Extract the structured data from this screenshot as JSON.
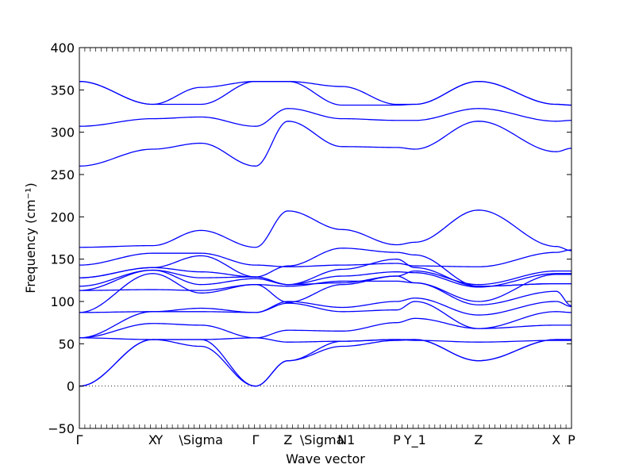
{
  "chart_data": {
    "type": "line",
    "xlabel": "Wave vector",
    "ylabel": "Frequency (cm⁻¹)",
    "ylim": [
      -50,
      400
    ],
    "yticks": [
      -50,
      0,
      50,
      100,
      150,
      200,
      250,
      300,
      350,
      400
    ],
    "grid": false,
    "line_color": "#0000ff",
    "xticks": [
      {
        "label": "Γ",
        "x": 0
      },
      {
        "label": "X",
        "x": 0.149
      },
      {
        "label": "Y",
        "x": 0.162
      },
      {
        "label": "\\Sigma",
        "x": 0.247
      },
      {
        "label": "Γ",
        "x": 0.358
      },
      {
        "label": "Z",
        "x": 0.424
      },
      {
        "label": "\\Sigma",
        "x": 0.493
      },
      {
        "label": "N",
        "x": 0.534
      },
      {
        "label": "1",
        "x": 0.552
      },
      {
        "label": "P",
        "x": 0.645
      },
      {
        "label": "Y_1",
        "x": 0.682
      },
      {
        "label": "Z",
        "x": 0.811
      },
      {
        "label": "X",
        "x": 0.969
      },
      {
        "label": "P",
        "x": 1.0
      }
    ],
    "knots_x": [
      0,
      0.149,
      0.247,
      0.358,
      0.424,
      0.534,
      0.645,
      0.682,
      0.811,
      0.969,
      1.0
    ],
    "series": [
      {
        "values": [
          0,
          55,
          47,
          0,
          30,
          47,
          54,
          55,
          30,
          55,
          55
        ]
      },
      {
        "values": [
          0,
          55,
          55,
          0,
          30,
          53,
          55,
          55,
          30,
          55,
          55
        ]
      },
      {
        "values": [
          57,
          55,
          55,
          57,
          52,
          53,
          55,
          54,
          52,
          54,
          54
        ]
      },
      {
        "values": [
          57,
          74,
          72,
          57,
          66,
          65,
          75,
          80,
          68,
          72,
          72
        ]
      },
      {
        "values": [
          57,
          88,
          88,
          87,
          98,
          88,
          90,
          100,
          68,
          88,
          87
        ]
      },
      {
        "values": [
          87,
          88,
          92,
          87,
          100,
          93,
          100,
          104,
          84,
          100,
          94
        ]
      },
      {
        "values": [
          87,
          133,
          110,
          120,
          99,
          120,
          130,
          122,
          96,
          112,
          95
        ]
      },
      {
        "values": [
          113,
          114,
          113,
          120,
          118,
          124,
          124,
          122,
          100,
          132,
          132
        ]
      },
      {
        "values": [
          113,
          137,
          120,
          127,
          120,
          130,
          135,
          134,
          117,
          133,
          133
        ]
      },
      {
        "values": [
          118,
          137,
          128,
          129,
          120,
          122,
          130,
          136,
          120,
          136,
          136
        ]
      },
      {
        "values": [
          128,
          140,
          135,
          129,
          120,
          138,
          150,
          140,
          118,
          121,
          121
        ]
      },
      {
        "values": [
          128,
          140,
          154,
          129,
          142,
          163,
          158,
          155,
          118,
          121,
          121
        ]
      },
      {
        "values": [
          143,
          157,
          157,
          143,
          141,
          143,
          145,
          142,
          141,
          158,
          161
        ]
      },
      {
        "values": [
          164,
          166,
          184,
          164,
          207,
          185,
          167,
          170,
          208,
          165,
          160
        ]
      },
      {
        "values": [
          260,
          280,
          287,
          260,
          313,
          283,
          282,
          280,
          313,
          277,
          281
        ]
      },
      {
        "values": [
          307,
          316,
          318,
          307,
          328,
          316,
          314,
          314,
          328,
          313,
          314
        ]
      },
      {
        "values": [
          360,
          333,
          333,
          360,
          360,
          332,
          332,
          333,
          360,
          333,
          332
        ]
      },
      {
        "values": [
          360,
          333,
          353,
          360,
          360,
          354,
          333,
          333,
          360,
          333,
          332
        ]
      }
    ]
  }
}
